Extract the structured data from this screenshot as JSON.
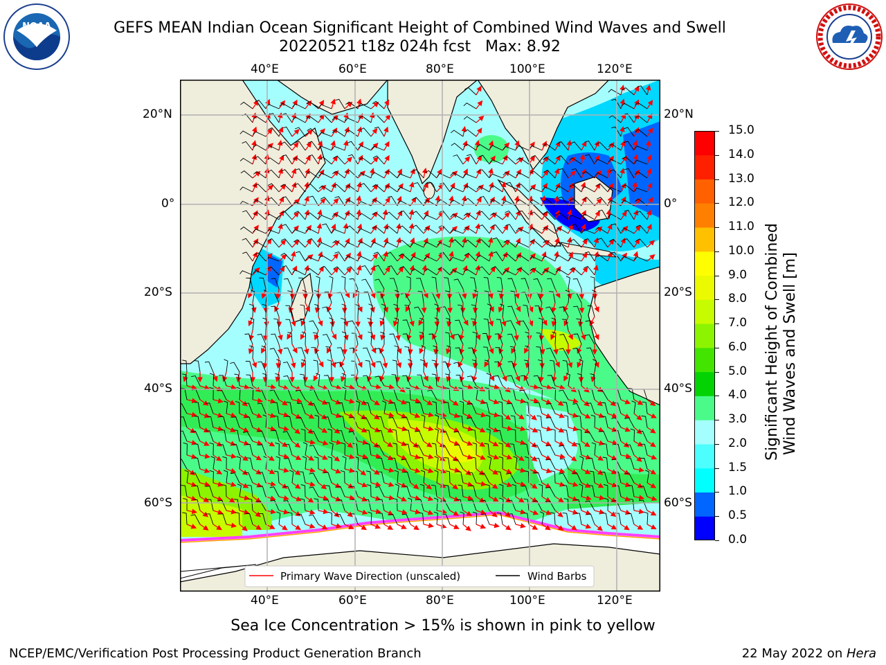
{
  "header": {
    "title_line1": "GEFS MEAN Indian Ocean Significant Height of Combined Wind Waves and Swell",
    "title_line2": "20220521 t18z 024h fcst   Max: 8.92"
  },
  "logos": {
    "left": {
      "text": "NOAA",
      "ring_text": "NATIONAL OCEANIC AND ATMOSPHERIC ADMINISTRATION · U.S. DEPARTMENT OF COMMERCE"
    },
    "right": {
      "ring_text": "NATIONAL WEATHER SERVICE"
    }
  },
  "map": {
    "lon_ticks": [
      "40°E",
      "60°E",
      "80°E",
      "100°E",
      "120°E"
    ],
    "lat_ticks": [
      "20°N",
      "0°",
      "20°S",
      "40°S",
      "60°S"
    ],
    "legend": {
      "wave": "Primary Wave Direction (unscaled)",
      "wind": "Wind Barbs"
    },
    "colors": {
      "land": "#efeddc",
      "ocean_light": "#a5fefe",
      "ice": "#ffffff",
      "ice_edge": "#ff40ff",
      "arrow": "#ff0000"
    }
  },
  "colorbar": {
    "label_line1": "Significant Height of Combined",
    "label_line2": "Wind Waves and Swell [m]",
    "ticks": [
      "15.0",
      "14.0",
      "13.0",
      "12.0",
      "11.0",
      "10.0",
      "9.0",
      "8.0",
      "7.0",
      "6.0",
      "5.0",
      "4.0",
      "3.0",
      "2.0",
      "1.5",
      "1.0",
      "0.5",
      "0.0"
    ],
    "colors": [
      "#0000fe",
      "#0066ff",
      "#00d8ff",
      "#00ffff",
      "#4cfefe",
      "#a5fefe",
      "#4afb8a",
      "#32ec55",
      "#04d303",
      "#43e400",
      "#8cf400",
      "#c7fb00",
      "#ebfa00",
      "#f2e100",
      "#fefe00",
      "#ffc000",
      "#ffa000",
      "#ff8000",
      "#ff6000",
      "#ff4000",
      "#ff2000",
      "#ff0000"
    ]
  },
  "footer": {
    "note": "Sea Ice Concentration > 15% is shown in pink to yellow",
    "left": "NCEP/EMC/Verification Post Processing Product Generation Branch",
    "right_date": "22 May 2022 on ",
    "right_host": "Hera"
  }
}
